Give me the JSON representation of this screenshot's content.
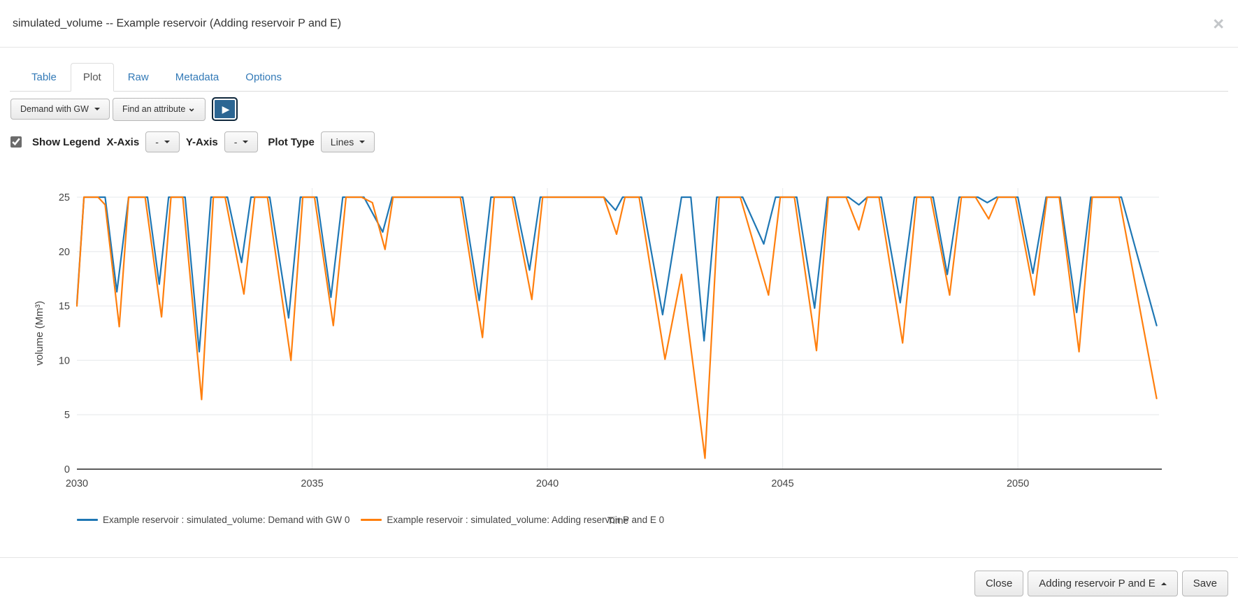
{
  "modal": {
    "title": "simulated_volume -- Example reservoir (Adding reservoir P and E)",
    "close_icon": "×"
  },
  "tabs": [
    {
      "label": "Table",
      "active": false
    },
    {
      "label": "Plot",
      "active": true
    },
    {
      "label": "Raw",
      "active": false
    },
    {
      "label": "Metadata",
      "active": false
    },
    {
      "label": "Options",
      "active": false
    }
  ],
  "toolbar": {
    "scenario_dropdown_value": "Demand with GW",
    "attribute_dropdown_value": "Find an attribute",
    "attribute_chevron": "⌄",
    "play_icon": "▶"
  },
  "plot_controls": {
    "show_legend_label": "Show Legend",
    "show_legend_checked": true,
    "x_axis_label": "X-Axis",
    "x_axis_value": "-",
    "y_axis_label": "Y-Axis",
    "y_axis_value": "-",
    "plot_type_label": "Plot Type",
    "plot_type_value": "Lines"
  },
  "footer": {
    "close_label": "Close",
    "scenario_select_value": "Adding reservoir P and E",
    "save_label": "Save"
  },
  "chart_data": {
    "type": "line",
    "title": "",
    "xlabel": "Time",
    "ylabel": "volume (Mm³)",
    "xlim": [
      2030,
      2053
    ],
    "ylim": [
      0,
      25
    ],
    "x_ticks": [
      2030,
      2035,
      2040,
      2045,
      2050
    ],
    "y_ticks": [
      0,
      5,
      10,
      15,
      20,
      25
    ],
    "grid": true,
    "legend_position": "bottom",
    "series": [
      {
        "name": "Example reservoir : simulated_volume: Demand with GW 0",
        "color": "#1f77b4",
        "points": [
          [
            2030.0,
            15.2
          ],
          [
            2030.15,
            25
          ],
          [
            2030.6,
            25
          ],
          [
            2030.85,
            16.3
          ],
          [
            2031.1,
            25
          ],
          [
            2031.5,
            25
          ],
          [
            2031.75,
            17.0
          ],
          [
            2031.95,
            25
          ],
          [
            2032.3,
            25
          ],
          [
            2032.6,
            10.8
          ],
          [
            2032.85,
            25
          ],
          [
            2033.2,
            25
          ],
          [
            2033.5,
            19.0
          ],
          [
            2033.7,
            25
          ],
          [
            2034.1,
            25
          ],
          [
            2034.5,
            13.9
          ],
          [
            2034.75,
            25
          ],
          [
            2035.1,
            25
          ],
          [
            2035.4,
            15.8
          ],
          [
            2035.65,
            25
          ],
          [
            2036.1,
            25
          ],
          [
            2036.5,
            21.8
          ],
          [
            2036.7,
            25
          ],
          [
            2038.2,
            25
          ],
          [
            2038.55,
            15.5
          ],
          [
            2038.8,
            25
          ],
          [
            2039.3,
            25
          ],
          [
            2039.62,
            18.3
          ],
          [
            2039.85,
            25
          ],
          [
            2041.2,
            25
          ],
          [
            2041.45,
            23.8
          ],
          [
            2041.6,
            25
          ],
          [
            2042.0,
            25
          ],
          [
            2042.45,
            14.2
          ],
          [
            2042.85,
            25
          ],
          [
            2043.05,
            25
          ],
          [
            2043.33,
            11.8
          ],
          [
            2043.6,
            25
          ],
          [
            2044.15,
            25
          ],
          [
            2044.6,
            20.7
          ],
          [
            2044.85,
            25
          ],
          [
            2045.3,
            25
          ],
          [
            2045.68,
            14.8
          ],
          [
            2045.95,
            25
          ],
          [
            2046.4,
            25
          ],
          [
            2046.62,
            24.3
          ],
          [
            2046.8,
            25
          ],
          [
            2047.1,
            25
          ],
          [
            2047.5,
            15.3
          ],
          [
            2047.8,
            25
          ],
          [
            2048.2,
            25
          ],
          [
            2048.5,
            17.9
          ],
          [
            2048.75,
            25
          ],
          [
            2049.15,
            25
          ],
          [
            2049.35,
            24.5
          ],
          [
            2049.55,
            25
          ],
          [
            2050.0,
            25
          ],
          [
            2050.32,
            18.0
          ],
          [
            2050.6,
            25
          ],
          [
            2050.9,
            25
          ],
          [
            2051.25,
            14.4
          ],
          [
            2051.55,
            25
          ],
          [
            2052.2,
            25
          ],
          [
            2052.95,
            13.2
          ]
        ]
      },
      {
        "name": "Example reservoir : simulated_volume: Adding reservoir P and E 0",
        "color": "#ff7f0e",
        "points": [
          [
            2030.0,
            15.0
          ],
          [
            2030.15,
            25
          ],
          [
            2030.45,
            25
          ],
          [
            2030.6,
            24.3
          ],
          [
            2030.9,
            13.1
          ],
          [
            2031.1,
            25
          ],
          [
            2031.45,
            25
          ],
          [
            2031.8,
            14.0
          ],
          [
            2032.0,
            25
          ],
          [
            2032.25,
            25
          ],
          [
            2032.65,
            6.4
          ],
          [
            2032.9,
            25
          ],
          [
            2033.15,
            25
          ],
          [
            2033.55,
            16.1
          ],
          [
            2033.78,
            25
          ],
          [
            2034.05,
            25
          ],
          [
            2034.55,
            10.0
          ],
          [
            2034.8,
            25
          ],
          [
            2035.05,
            25
          ],
          [
            2035.45,
            13.2
          ],
          [
            2035.72,
            25
          ],
          [
            2036.05,
            25
          ],
          [
            2036.28,
            24.5
          ],
          [
            2036.55,
            20.2
          ],
          [
            2036.72,
            25
          ],
          [
            2038.15,
            25
          ],
          [
            2038.62,
            12.1
          ],
          [
            2038.87,
            25
          ],
          [
            2039.25,
            25
          ],
          [
            2039.67,
            15.6
          ],
          [
            2039.9,
            25
          ],
          [
            2041.2,
            25
          ],
          [
            2041.47,
            21.6
          ],
          [
            2041.65,
            25
          ],
          [
            2041.95,
            25
          ],
          [
            2042.5,
            10.1
          ],
          [
            2042.85,
            17.9
          ],
          [
            2043.35,
            1.0
          ],
          [
            2043.65,
            25
          ],
          [
            2044.1,
            25
          ],
          [
            2044.7,
            16.0
          ],
          [
            2044.95,
            25
          ],
          [
            2045.25,
            25
          ],
          [
            2045.72,
            10.9
          ],
          [
            2045.97,
            25
          ],
          [
            2046.35,
            25
          ],
          [
            2046.62,
            22.0
          ],
          [
            2046.8,
            25
          ],
          [
            2047.05,
            25
          ],
          [
            2047.55,
            11.6
          ],
          [
            2047.85,
            25
          ],
          [
            2048.15,
            25
          ],
          [
            2048.55,
            16.0
          ],
          [
            2048.8,
            25
          ],
          [
            2049.1,
            25
          ],
          [
            2049.38,
            23.0
          ],
          [
            2049.58,
            25
          ],
          [
            2049.95,
            25
          ],
          [
            2050.35,
            16.0
          ],
          [
            2050.62,
            25
          ],
          [
            2050.88,
            25
          ],
          [
            2051.3,
            10.8
          ],
          [
            2051.58,
            25
          ],
          [
            2052.15,
            25
          ],
          [
            2052.95,
            6.5
          ]
        ]
      }
    ]
  }
}
